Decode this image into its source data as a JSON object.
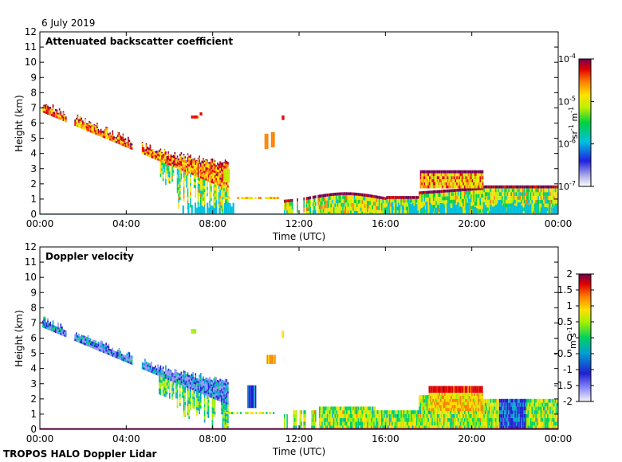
{
  "date_label": "6 July 2019",
  "footer_label": "TROPOS HALO Doppler Lidar",
  "chart_data": [
    {
      "type": "heatmap",
      "title": "Attenuated backscatter coefficient",
      "xlabel": "Time (UTC)",
      "ylabel": "Height (km)",
      "x_ticks": [
        "00:00",
        "04:00",
        "08:00",
        "12:00",
        "16:00",
        "20:00",
        "00:00"
      ],
      "xlim": [
        0,
        24
      ],
      "ylim": [
        0,
        12
      ],
      "y_ticks": [
        "0",
        "1",
        "2",
        "3",
        "4",
        "5",
        "6",
        "7",
        "8",
        "9",
        "10",
        "11",
        "12"
      ],
      "colorbar": {
        "scale": "log",
        "range": [
          1e-07,
          0.0001
        ],
        "tick_bases": [
          "10",
          "10",
          "10",
          "10"
        ],
        "tick_exps": [
          "-7",
          "-6",
          "-5",
          "-4"
        ],
        "unit_parts": [
          "sr",
          "-1",
          " m",
          "-1"
        ]
      },
      "layers": [
        {
          "name": "falling-cloud-streak",
          "start_hour": 0.1,
          "end_hour": 8.7,
          "start_km": 6.7,
          "end_km": 1.6,
          "value": 0.95
        },
        {
          "name": "boundary-layer-aerosol",
          "start_hour": 11.3,
          "end_hour": 24.0,
          "start_km": 1.2,
          "end_km": 1.9,
          "value": 0.85
        },
        {
          "name": "evening-cloud-top",
          "start_hour": 17.6,
          "end_hour": 20.5,
          "start_km": 2.8,
          "end_km": 2.8,
          "value": 0.9
        }
      ]
    },
    {
      "type": "heatmap",
      "title": "Doppler velocity",
      "xlabel": "Time (UTC)",
      "ylabel": "Height (km)",
      "x_ticks": [
        "00:00",
        "04:00",
        "08:00",
        "12:00",
        "16:00",
        "20:00",
        "00:00"
      ],
      "xlim": [
        0,
        24
      ],
      "ylim": [
        0,
        12
      ],
      "y_ticks": [
        "0",
        "1",
        "2",
        "3",
        "4",
        "5",
        "6",
        "7",
        "8",
        "9",
        "10",
        "11",
        "12"
      ],
      "colorbar": {
        "scale": "linear",
        "range": [
          -2,
          2
        ],
        "ticks": [
          "-2",
          "-1.5",
          "-1",
          "-0.5",
          "0",
          "0.5",
          "1",
          "1.5",
          "2"
        ],
        "unit_parts": [
          "m s",
          "-1"
        ]
      },
      "velocity_features": [
        {
          "name": "downward-streak",
          "start_hour": 0.1,
          "end_hour": 8.7,
          "value_ms": -1.3
        },
        {
          "name": "updraft-cell",
          "start_hour": 18.0,
          "end_hour": 20.5,
          "value_ms": 1.6
        }
      ]
    }
  ]
}
